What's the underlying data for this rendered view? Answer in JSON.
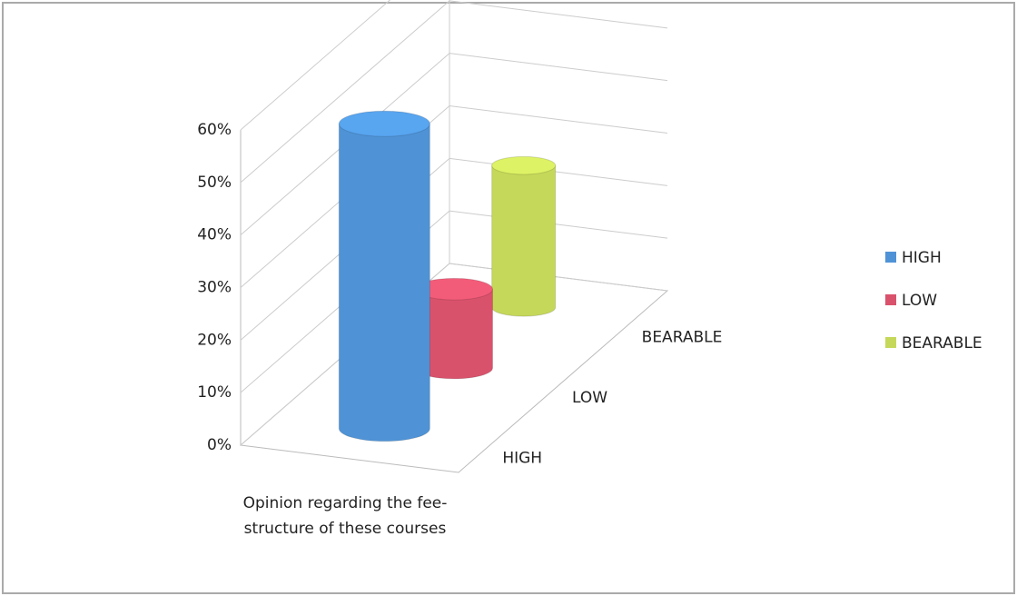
{
  "chart_data": {
    "type": "bar3d",
    "categories": [
      "Opinion regarding the fee-structure of these courses"
    ],
    "series": [
      {
        "name": "HIGH",
        "color": "#4f93d6",
        "values": [
          58
        ]
      },
      {
        "name": "LOW",
        "color": "#d9526c",
        "values": [
          15
        ]
      },
      {
        "name": "BEARABLE",
        "color": "#c6d85a",
        "values": [
          27
        ]
      }
    ],
    "ylim": [
      0,
      60
    ],
    "yticks": [
      {
        "value": 0,
        "label": "0%"
      },
      {
        "value": 10,
        "label": "10%"
      },
      {
        "value": 20,
        "label": "20%"
      },
      {
        "value": 30,
        "label": "30%"
      },
      {
        "value": 40,
        "label": "40%"
      },
      {
        "value": 50,
        "label": "50%"
      },
      {
        "value": 60,
        "label": "60%"
      }
    ],
    "grid": true,
    "legend": "right"
  }
}
